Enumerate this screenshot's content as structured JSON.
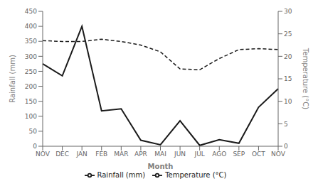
{
  "chart_data": {
    "type": "line",
    "xlabel": "Month",
    "ylabel": "Rainfall (mm)",
    "y2label": "Temperature (°C)",
    "categories": [
      "NOV",
      "DEC",
      "JAN",
      "FEB",
      "MAR",
      "APR",
      "MAI",
      "JUN",
      "JUL",
      "AGO",
      "SEP",
      "OCT",
      "NOV"
    ],
    "series": [
      {
        "name": "Rainfall (mm)",
        "color": "#1a1a1a",
        "line_style": "solid",
        "values": [
          275,
          235,
          400,
          118,
          125,
          20,
          5,
          85,
          3,
          22,
          10,
          130,
          192
        ]
      },
      {
        "name": "Temperature (°C)",
        "color": "#1a1a1a",
        "line_style": "dashed",
        "axis": "y2",
        "values": [
          23.5,
          23.3,
          23.3,
          23.8,
          23.3,
          22.5,
          21.0,
          17.2,
          17.0,
          19.5,
          21.5,
          21.7,
          21.5
        ]
      }
    ],
    "ylim": [
      0,
      450
    ],
    "yticks": [
      0,
      50,
      100,
      150,
      200,
      250,
      300,
      350,
      400,
      450
    ],
    "y2lim": [
      0,
      30
    ],
    "y2ticks": [
      0,
      5,
      10,
      15,
      20,
      25,
      30
    ],
    "grid": false,
    "legend": "bottom"
  }
}
